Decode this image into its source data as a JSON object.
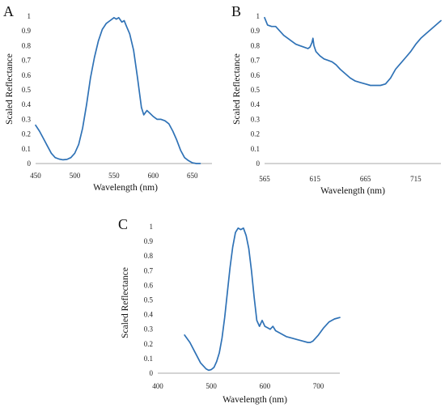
{
  "figure": {
    "series_color": "#2f72b6"
  },
  "chart_data": [
    {
      "panel": "A",
      "type": "line",
      "xlabel": "Wavelength (nm)",
      "ylabel": "Scaled Reflectance",
      "xlim": [
        450,
        675
      ],
      "ylim": [
        0,
        1
      ],
      "xticks": [
        450,
        500,
        550,
        600,
        650
      ],
      "yticks": [
        0,
        0.1,
        0.2,
        0.3,
        0.4,
        0.5,
        0.6,
        0.7,
        0.8,
        0.9,
        1
      ],
      "x": [
        450,
        455,
        460,
        465,
        470,
        475,
        480,
        485,
        490,
        495,
        500,
        505,
        510,
        515,
        520,
        525,
        530,
        535,
        540,
        545,
        550,
        553,
        556,
        560,
        563,
        566,
        570,
        575,
        580,
        585,
        588,
        592,
        596,
        600,
        605,
        610,
        615,
        620,
        625,
        630,
        635,
        640,
        645,
        650,
        655,
        660
      ],
      "y": [
        0.26,
        0.22,
        0.17,
        0.12,
        0.07,
        0.04,
        0.03,
        0.025,
        0.028,
        0.04,
        0.07,
        0.13,
        0.24,
        0.4,
        0.58,
        0.72,
        0.83,
        0.91,
        0.95,
        0.97,
        0.99,
        0.98,
        0.99,
        0.96,
        0.97,
        0.93,
        0.88,
        0.77,
        0.58,
        0.38,
        0.33,
        0.36,
        0.34,
        0.32,
        0.3,
        0.3,
        0.29,
        0.27,
        0.22,
        0.16,
        0.09,
        0.04,
        0.02,
        0.005,
        0.0,
        0.0
      ]
    },
    {
      "panel": "B",
      "type": "line",
      "xlabel": "Wavelength (nm)",
      "ylabel": "Scaled Reflectance",
      "xlim": [
        565,
        740
      ],
      "ylim": [
        0,
        1
      ],
      "xticks": [
        565,
        615,
        665,
        715
      ],
      "yticks": [
        0,
        0.1,
        0.2,
        0.3,
        0.4,
        0.5,
        0.6,
        0.7,
        0.8,
        0.9,
        1
      ],
      "x": [
        565,
        568,
        572,
        576,
        580,
        584,
        588,
        592,
        596,
        600,
        604,
        608,
        610,
        612,
        613,
        614,
        616,
        620,
        624,
        628,
        632,
        636,
        640,
        645,
        650,
        655,
        660,
        665,
        670,
        675,
        680,
        685,
        690,
        695,
        700,
        705,
        710,
        715,
        720,
        725,
        730,
        735,
        740
      ],
      "y": [
        0.99,
        0.94,
        0.93,
        0.93,
        0.9,
        0.87,
        0.85,
        0.83,
        0.81,
        0.8,
        0.79,
        0.78,
        0.79,
        0.82,
        0.85,
        0.8,
        0.76,
        0.73,
        0.71,
        0.7,
        0.69,
        0.67,
        0.64,
        0.61,
        0.58,
        0.56,
        0.55,
        0.54,
        0.53,
        0.53,
        0.53,
        0.54,
        0.58,
        0.64,
        0.68,
        0.72,
        0.76,
        0.81,
        0.85,
        0.88,
        0.91,
        0.94,
        0.97
      ]
    },
    {
      "panel": "C",
      "type": "line",
      "xlabel": "Wavelength (nm)",
      "ylabel": "Scaled Reflectance",
      "xlim": [
        400,
        740
      ],
      "ylim": [
        0,
        1
      ],
      "xticks": [
        400,
        500,
        600,
        700
      ],
      "yticks": [
        0,
        0.1,
        0.2,
        0.3,
        0.4,
        0.5,
        0.6,
        0.7,
        0.8,
        0.9,
        1
      ],
      "x": [
        450,
        460,
        470,
        480,
        490,
        495,
        500,
        505,
        510,
        515,
        520,
        525,
        530,
        535,
        540,
        545,
        550,
        555,
        560,
        565,
        570,
        575,
        580,
        585,
        590,
        595,
        600,
        605,
        610,
        615,
        620,
        630,
        640,
        650,
        660,
        670,
        680,
        685,
        690,
        700,
        710,
        720,
        730,
        740
      ],
      "y": [
        0.26,
        0.21,
        0.14,
        0.07,
        0.03,
        0.02,
        0.025,
        0.04,
        0.08,
        0.14,
        0.24,
        0.38,
        0.55,
        0.72,
        0.86,
        0.96,
        0.99,
        0.98,
        0.99,
        0.94,
        0.85,
        0.7,
        0.52,
        0.36,
        0.32,
        0.36,
        0.32,
        0.31,
        0.3,
        0.32,
        0.29,
        0.27,
        0.25,
        0.24,
        0.23,
        0.22,
        0.21,
        0.21,
        0.22,
        0.26,
        0.31,
        0.35,
        0.37,
        0.38
      ]
    }
  ]
}
